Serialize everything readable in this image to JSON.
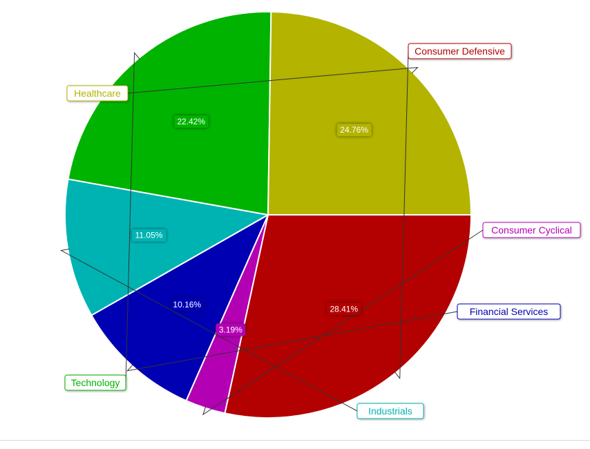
{
  "chart_data": {
    "type": "pie",
    "title": "",
    "start_angle_deg": 90,
    "direction": "clockwise",
    "legend": "none",
    "slices": [
      {
        "label": "Consumer Defensive",
        "value": 28.41,
        "value_label": "28.41%",
        "color": "#b30000"
      },
      {
        "label": "Consumer Cyclical",
        "value": 3.19,
        "value_label": "3.19%",
        "color": "#b300b3"
      },
      {
        "label": "Financial Services",
        "value": 10.16,
        "value_label": "10.16%",
        "color": "#0000b3"
      },
      {
        "label": "Industrials",
        "value": 11.05,
        "value_label": "11.05%",
        "color": "#00b3b3"
      },
      {
        "label": "Technology",
        "value": 22.42,
        "value_label": "22.42%",
        "color": "#00b300"
      },
      {
        "label": "Healthcare",
        "value": 24.76,
        "value_label": "24.76%",
        "color": "#b3b300"
      }
    ]
  }
}
